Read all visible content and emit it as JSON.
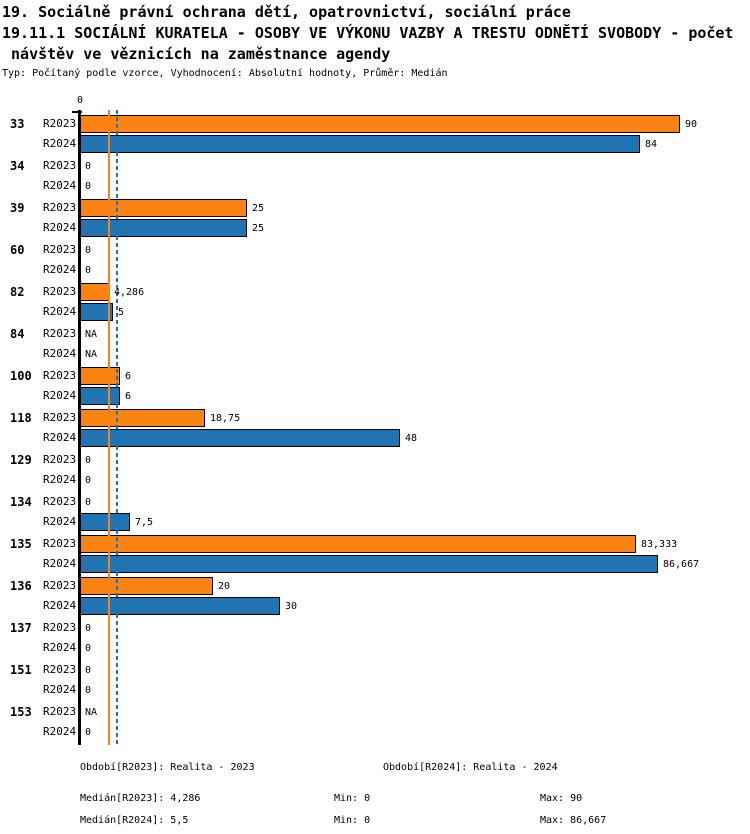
{
  "title": {
    "line1": "19. Sociálně právní ochrana dětí, opatrovnictví, sociální práce",
    "line2": "19.11.1 SOCIÁLNÍ KURATELA - OSOBY VE VÝKONU VAZBY A TRESTU ODNĚTÍ SVOBODY - počet",
    "line3": " návštěv ve věznicích na zaměstnance agendy",
    "meta": "Typ: Počítaný podle vzorce, Vyhodnocení: Absolutní hodnoty, Průměr: Medián"
  },
  "chart_data": {
    "type": "bar",
    "orientation": "horizontal",
    "title": "19.11.1 SOCIÁLNÍ KURATELA - OSOBY VE VÝKONU VAZBY A TRESTU ODNĚTÍ SVOBODY - počet návštěv ve věznicích na zaměstnance agendy",
    "xlabel": "",
    "ylabel": "",
    "xlim": [
      0,
      90
    ],
    "grid": false,
    "axis_zero_label": "0",
    "categories": [
      "33",
      "34",
      "39",
      "60",
      "82",
      "84",
      "100",
      "118",
      "129",
      "134",
      "135",
      "136",
      "137",
      "151",
      "153"
    ],
    "series": [
      {
        "name": "R2023",
        "color": "#fa8314",
        "values": [
          90,
          0,
          25,
          0,
          4.286,
          null,
          6,
          18.75,
          0,
          0,
          83.333,
          20,
          0,
          0,
          null
        ],
        "labels": [
          "90",
          "0",
          "25",
          "0",
          "4,286",
          "NA",
          "6",
          "18,75",
          "0",
          "0",
          "83,333",
          "20",
          "0",
          "0",
          "NA"
        ]
      },
      {
        "name": "R2024",
        "color": "#2173b2",
        "values": [
          84,
          0,
          25,
          0,
          5,
          null,
          6,
          48,
          0,
          7.5,
          86.667,
          30,
          0,
          0,
          0
        ],
        "labels": [
          "84",
          "0",
          "25",
          "0",
          "5",
          "NA",
          "6",
          "48",
          "0",
          "7,5",
          "86,667",
          "30",
          "0",
          "0",
          "0"
        ]
      }
    ],
    "median_lines": [
      {
        "series": "R2023",
        "value": 4.286,
        "color": "#fa8314",
        "style": "solid"
      },
      {
        "series": "R2024",
        "value": 5.5,
        "color": "#2173b2",
        "style": "dashed"
      }
    ]
  },
  "footer": {
    "period_r2023": "Období[R2023]: Realita - 2023",
    "period_r2024": "Období[R2024]: Realita - 2024",
    "median_r2023": "Medián[R2023]: 4,286",
    "median_r2024": "Medián[R2024]: 5,5",
    "min_r2023": "Min: 0",
    "min_r2024": "Min: 0",
    "max_r2023": "Max: 90",
    "max_r2024": "Max: 86,667"
  }
}
